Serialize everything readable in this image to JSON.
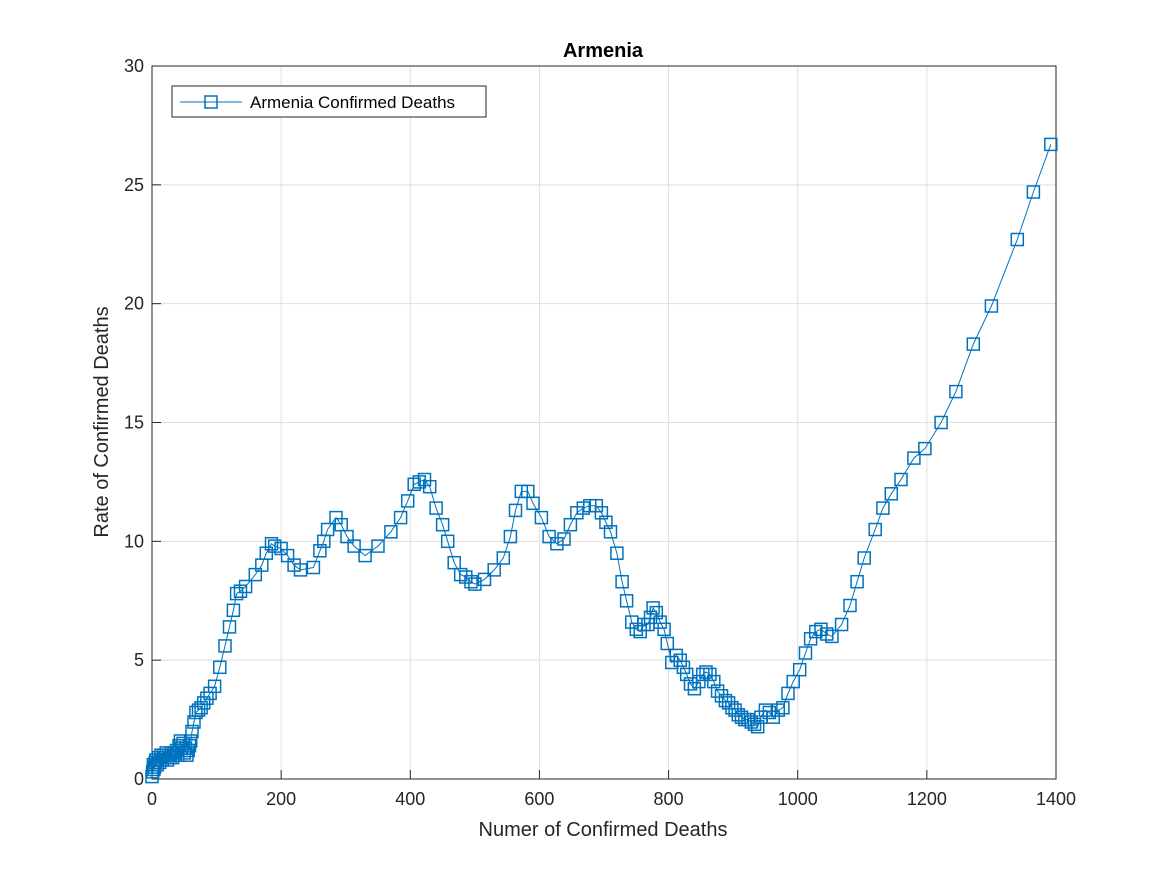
{
  "chart_data": {
    "type": "line",
    "title": "Armenia",
    "xlabel": "Numer of Confirmed Deaths",
    "ylabel": "Rate of Confirmed Deaths",
    "xlim": [
      0,
      1400
    ],
    "ylim": [
      0,
      30
    ],
    "xticks": [
      0,
      200,
      400,
      600,
      800,
      1000,
      1200,
      1400
    ],
    "yticks": [
      0,
      5,
      10,
      15,
      20,
      25,
      30
    ],
    "grid": true,
    "legend_position": "top-left",
    "marker": "square",
    "line_color": "#0072BD",
    "series": [
      {
        "name": "Armenia Confirmed Deaths",
        "x": [
          0,
          1,
          2,
          3,
          4,
          5,
          6,
          8,
          10,
          12,
          14,
          16,
          18,
          20,
          22,
          24,
          26,
          28,
          30,
          32,
          34,
          36,
          38,
          40,
          42,
          44,
          46,
          48,
          50,
          52,
          54,
          56,
          58,
          60,
          62,
          65,
          68,
          72,
          76,
          80,
          85,
          90,
          97,
          105,
          113,
          120,
          126,
          131,
          137,
          145,
          160,
          170,
          177,
          185,
          190,
          200,
          210,
          220,
          230,
          250,
          260,
          266,
          272,
          285,
          293,
          302,
          313,
          330,
          350,
          370,
          385,
          396,
          406,
          414,
          422,
          430,
          440,
          450,
          458,
          468,
          478,
          486,
          494,
          500,
          515,
          530,
          544,
          555,
          563,
          572,
          582,
          590,
          603,
          615,
          627,
          638,
          648,
          658,
          668,
          678,
          688,
          696,
          703,
          710,
          720,
          728,
          735,
          743,
          750,
          756,
          762,
          768,
          772,
          776,
          781,
          787,
          793,
          798,
          805,
          812,
          818,
          823,
          828,
          834,
          840,
          847,
          853,
          858,
          864,
          870,
          876,
          882,
          888,
          893,
          898,
          903,
          908,
          913,
          918,
          923,
          928,
          933,
          938,
          943,
          950,
          956,
          962,
          970,
          977,
          985,
          993,
          1003,
          1012,
          1020,
          1028,
          1036,
          1045,
          1053,
          1068,
          1081,
          1092,
          1103,
          1120,
          1132,
          1145,
          1160,
          1180,
          1197,
          1222,
          1245,
          1272,
          1300,
          1340,
          1365,
          1392
        ],
        "y": [
          0.1,
          0.3,
          0.6,
          0.4,
          0.5,
          0.7,
          0.8,
          0.6,
          0.9,
          0.7,
          1.0,
          0.8,
          1.0,
          0.9,
          1.1,
          0.8,
          1.0,
          0.9,
          1.1,
          0.9,
          1.1,
          1.0,
          1.2,
          1.0,
          1.4,
          1.6,
          1.3,
          1.5,
          1.1,
          1.3,
          1.0,
          1.2,
          1.4,
          1.6,
          2.0,
          2.4,
          2.8,
          2.9,
          3.0,
          3.2,
          3.4,
          3.6,
          3.9,
          4.7,
          5.6,
          6.4,
          7.1,
          7.8,
          7.9,
          8.1,
          8.6,
          9.0,
          9.5,
          9.9,
          9.8,
          9.7,
          9.4,
          9.0,
          8.8,
          8.9,
          9.6,
          10.0,
          10.5,
          11.0,
          10.7,
          10.2,
          9.8,
          9.4,
          9.8,
          10.4,
          11.0,
          11.7,
          12.4,
          12.5,
          12.6,
          12.3,
          11.4,
          10.7,
          10.0,
          9.1,
          8.6,
          8.5,
          8.3,
          8.2,
          8.4,
          8.8,
          9.3,
          10.2,
          11.3,
          12.1,
          12.1,
          11.6,
          11.0,
          10.2,
          9.9,
          10.1,
          10.7,
          11.2,
          11.4,
          11.5,
          11.5,
          11.2,
          10.8,
          10.4,
          9.5,
          8.3,
          7.5,
          6.6,
          6.3,
          6.2,
          6.5,
          6.5,
          6.8,
          7.2,
          7.0,
          6.6,
          6.3,
          5.7,
          4.9,
          5.2,
          5.0,
          4.7,
          4.4,
          4.0,
          3.8,
          4.1,
          4.4,
          4.5,
          4.4,
          4.1,
          3.7,
          3.5,
          3.3,
          3.2,
          3.0,
          2.9,
          2.7,
          2.6,
          2.5,
          2.5,
          2.4,
          2.3,
          2.2,
          2.6,
          2.9,
          2.8,
          2.6,
          2.9,
          3.0,
          3.6,
          4.1,
          4.6,
          5.3,
          5.9,
          6.2,
          6.3,
          6.1,
          6.0,
          6.5,
          7.3,
          8.3,
          9.3,
          10.5,
          11.4,
          12.0,
          12.6,
          13.5,
          13.9,
          15.0,
          16.3,
          18.3,
          19.9,
          22.7,
          24.7,
          26.7
        ]
      }
    ]
  }
}
